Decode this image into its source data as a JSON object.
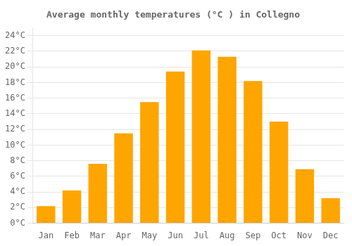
{
  "chart_data": {
    "type": "bar",
    "title": "Average monthly temperatures (°C ) in Collegno",
    "categories": [
      "Jan",
      "Feb",
      "Mar",
      "Apr",
      "May",
      "Jun",
      "Jul",
      "Aug",
      "Sep",
      "Oct",
      "Nov",
      "Dec"
    ],
    "values": [
      2.2,
      4.2,
      7.6,
      11.5,
      15.5,
      19.4,
      22.1,
      21.3,
      18.2,
      13.0,
      6.9,
      3.2
    ],
    "color": "#FFA500",
    "ylim": [
      0,
      25
    ],
    "yticks": [
      {
        "value": 0,
        "label": "0°C"
      },
      {
        "value": 2,
        "label": "2°C"
      },
      {
        "value": 4,
        "label": "4°C"
      },
      {
        "value": 6,
        "label": "6°C"
      },
      {
        "value": 8,
        "label": "8°C"
      },
      {
        "value": 10,
        "label": "10°C"
      },
      {
        "value": 12,
        "label": "12°C"
      },
      {
        "value": 14,
        "label": "14°C"
      },
      {
        "value": 16,
        "label": "16°C"
      },
      {
        "value": 18,
        "label": "18°C"
      },
      {
        "value": 20,
        "label": "20°C"
      },
      {
        "value": 22,
        "label": "22°C"
      },
      {
        "value": 24,
        "label": "24°C"
      }
    ],
    "grid": true
  }
}
